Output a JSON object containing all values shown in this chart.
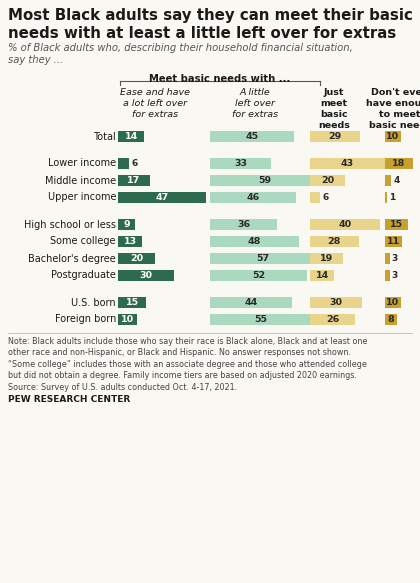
{
  "title": "Most Black adults say they can meet their basic\nneeds with at least a little left over for extras",
  "subtitle": "% of Black adults who, describing their household financial situation,\nsay they ...",
  "col_headers": [
    "Ease and have\na lot left over\nfor extras",
    "A little\nleft over\nfor extras",
    "Just\nmeet\nbasic\nneeds",
    "Don't even\nhave enough\nto meet\nbasic needs"
  ],
  "bracket_label": "Meet basic needs with ...",
  "rows": [
    {
      "label": "Total",
      "vals": [
        14,
        45,
        29,
        10
      ]
    },
    {
      "label": "Lower income",
      "vals": [
        6,
        33,
        43,
        18
      ]
    },
    {
      "label": "Middle income",
      "vals": [
        17,
        59,
        20,
        4
      ]
    },
    {
      "label": "Upper income",
      "vals": [
        47,
        46,
        6,
        1
      ]
    },
    {
      "label": "High school or less",
      "vals": [
        9,
        36,
        40,
        15
      ]
    },
    {
      "label": "Some college",
      "vals": [
        13,
        48,
        28,
        11
      ]
    },
    {
      "label": "Bachelor's degree",
      "vals": [
        20,
        57,
        19,
        3
      ]
    },
    {
      "label": "Postgraduate",
      "vals": [
        30,
        52,
        14,
        3
      ]
    },
    {
      "label": "U.S. born",
      "vals": [
        15,
        44,
        30,
        10
      ]
    },
    {
      "label": "Foreign born",
      "vals": [
        10,
        55,
        26,
        8
      ]
    }
  ],
  "group_breaks": [
    1,
    4,
    8
  ],
  "colors": [
    "#2d6b4f",
    "#aad9c0",
    "#e8d48b",
    "#c8a030"
  ],
  "note": "Note: Black adults include those who say their race is Black alone, Black and at least one\nother race and non-Hispanic, or Black and Hispanic. No answer responses not shown.\n“Some college” includes those with an associate degree and those who attended college\nbut did not obtain a degree. Family income tiers are based on adjusted 2020 earnings.\nSource: Survey of U.S. adults conducted Oct. 4-17, 2021.",
  "source_bold": "PEW RESEARCH CENTER",
  "background": "#faf8f3"
}
